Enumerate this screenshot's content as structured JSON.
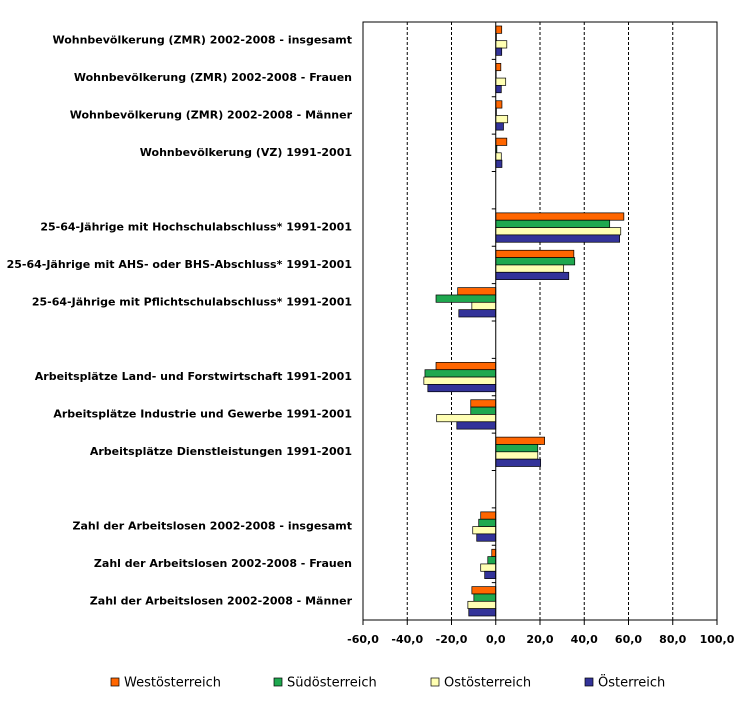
{
  "chart_data": {
    "type": "hbar",
    "categories": [
      "Wohnbevölkerung (ZMR) 2002-2008 - insgesamt",
      "Wohnbevölkerung (ZMR) 2002-2008 - Frauen",
      "Wohnbevölkerung (ZMR) 2002-2008 - Männer",
      "Wohnbevölkerung (VZ) 1991-2001",
      null,
      "25-64-Jährige mit Hochschulabschluss* 1991-2001",
      "25-64-Jährige mit AHS- oder BHS-Abschluss* 1991-2001",
      "25-64-Jährige mit Pflichtschulabschluss* 1991-2001",
      null,
      "Arbeitsplätze Land- und Forstwirtschaft 1991-2001",
      "Arbeitsplätze Industrie und Gewerbe 1991-2001",
      "Arbeitsplätze Dienstleistungen 1991-2001",
      null,
      "Zahl der Arbeitslosen 2002-2008 - insgesamt",
      "Zahl der Arbeitslosen 2002-2008 - Frauen",
      "Zahl der Arbeitslosen 2002-2008 - Männer"
    ],
    "series": [
      {
        "name": "Westösterreich",
        "color": "#ff6600",
        "values": [
          2.7,
          2.3,
          2.8,
          5.0,
          null,
          57.9,
          35.3,
          -17.2,
          null,
          -27.0,
          -11.3,
          22.1,
          null,
          -6.8,
          -1.8,
          -10.8
        ]
      },
      {
        "name": "Südösterreich",
        "color": "#1fa84f",
        "values": [
          0.3,
          0.2,
          0.3,
          0.5,
          null,
          51.5,
          35.7,
          -27.0,
          null,
          -32.0,
          -11.3,
          19.0,
          null,
          -7.7,
          -3.6,
          -9.9
        ]
      },
      {
        "name": "Ostösterreich",
        "color": "#ffffb3",
        "values": [
          5.0,
          4.5,
          5.4,
          2.5,
          null,
          56.5,
          30.7,
          -10.8,
          null,
          -32.5,
          -26.7,
          19.0,
          null,
          -10.4,
          -6.8,
          -12.6
        ]
      },
      {
        "name": "Österreich",
        "color": "#333399",
        "values": [
          2.7,
          2.5,
          3.5,
          2.8,
          null,
          56.0,
          33.0,
          -16.7,
          null,
          -30.7,
          -17.6,
          20.3,
          null,
          -8.6,
          -5.0,
          -12.2
        ]
      }
    ],
    "xlim": [
      -60,
      100
    ],
    "xticks": [
      {
        "value": -60,
        "label": "-60,0"
      },
      {
        "value": -40,
        "label": "-40,0"
      },
      {
        "value": -20,
        "label": "-20,0"
      },
      {
        "value": 0,
        "label": "0,0"
      },
      {
        "value": 20,
        "label": "20,0"
      },
      {
        "value": 40,
        "label": "40,0"
      },
      {
        "value": 60,
        "label": "60,0"
      },
      {
        "value": 80,
        "label": "80,0"
      },
      {
        "value": 100,
        "label": "100,0"
      }
    ],
    "grid": true,
    "legend": "bottom"
  }
}
